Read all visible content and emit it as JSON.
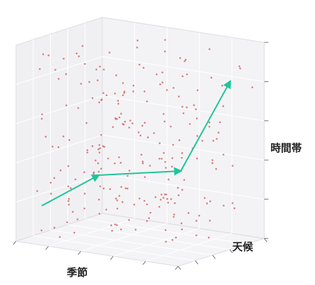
{
  "chart_data": {
    "type": "scatter",
    "projection": "3d",
    "title": "",
    "xlabel": "季節",
    "ylabel": "天候",
    "zlabel": "時間帯",
    "xlim": [
      0,
      1
    ],
    "ylim": [
      0,
      1
    ],
    "zlim": [
      0,
      1
    ],
    "grid": true,
    "point_color": "#d46a6a",
    "arrow_color": "#1fc49a",
    "pane_color": "#ebebef",
    "point_count": 240,
    "arrow_path": [
      {
        "x": 0.02,
        "y": 0.05,
        "z": 0.2
      },
      {
        "x": 0.37,
        "y": 0.05,
        "z": 0.38
      },
      {
        "x": 0.7,
        "y": 0.05,
        "z": 0.4
      },
      {
        "x": 0.98,
        "y": 0.05,
        "z": 0.95
      }
    ]
  }
}
